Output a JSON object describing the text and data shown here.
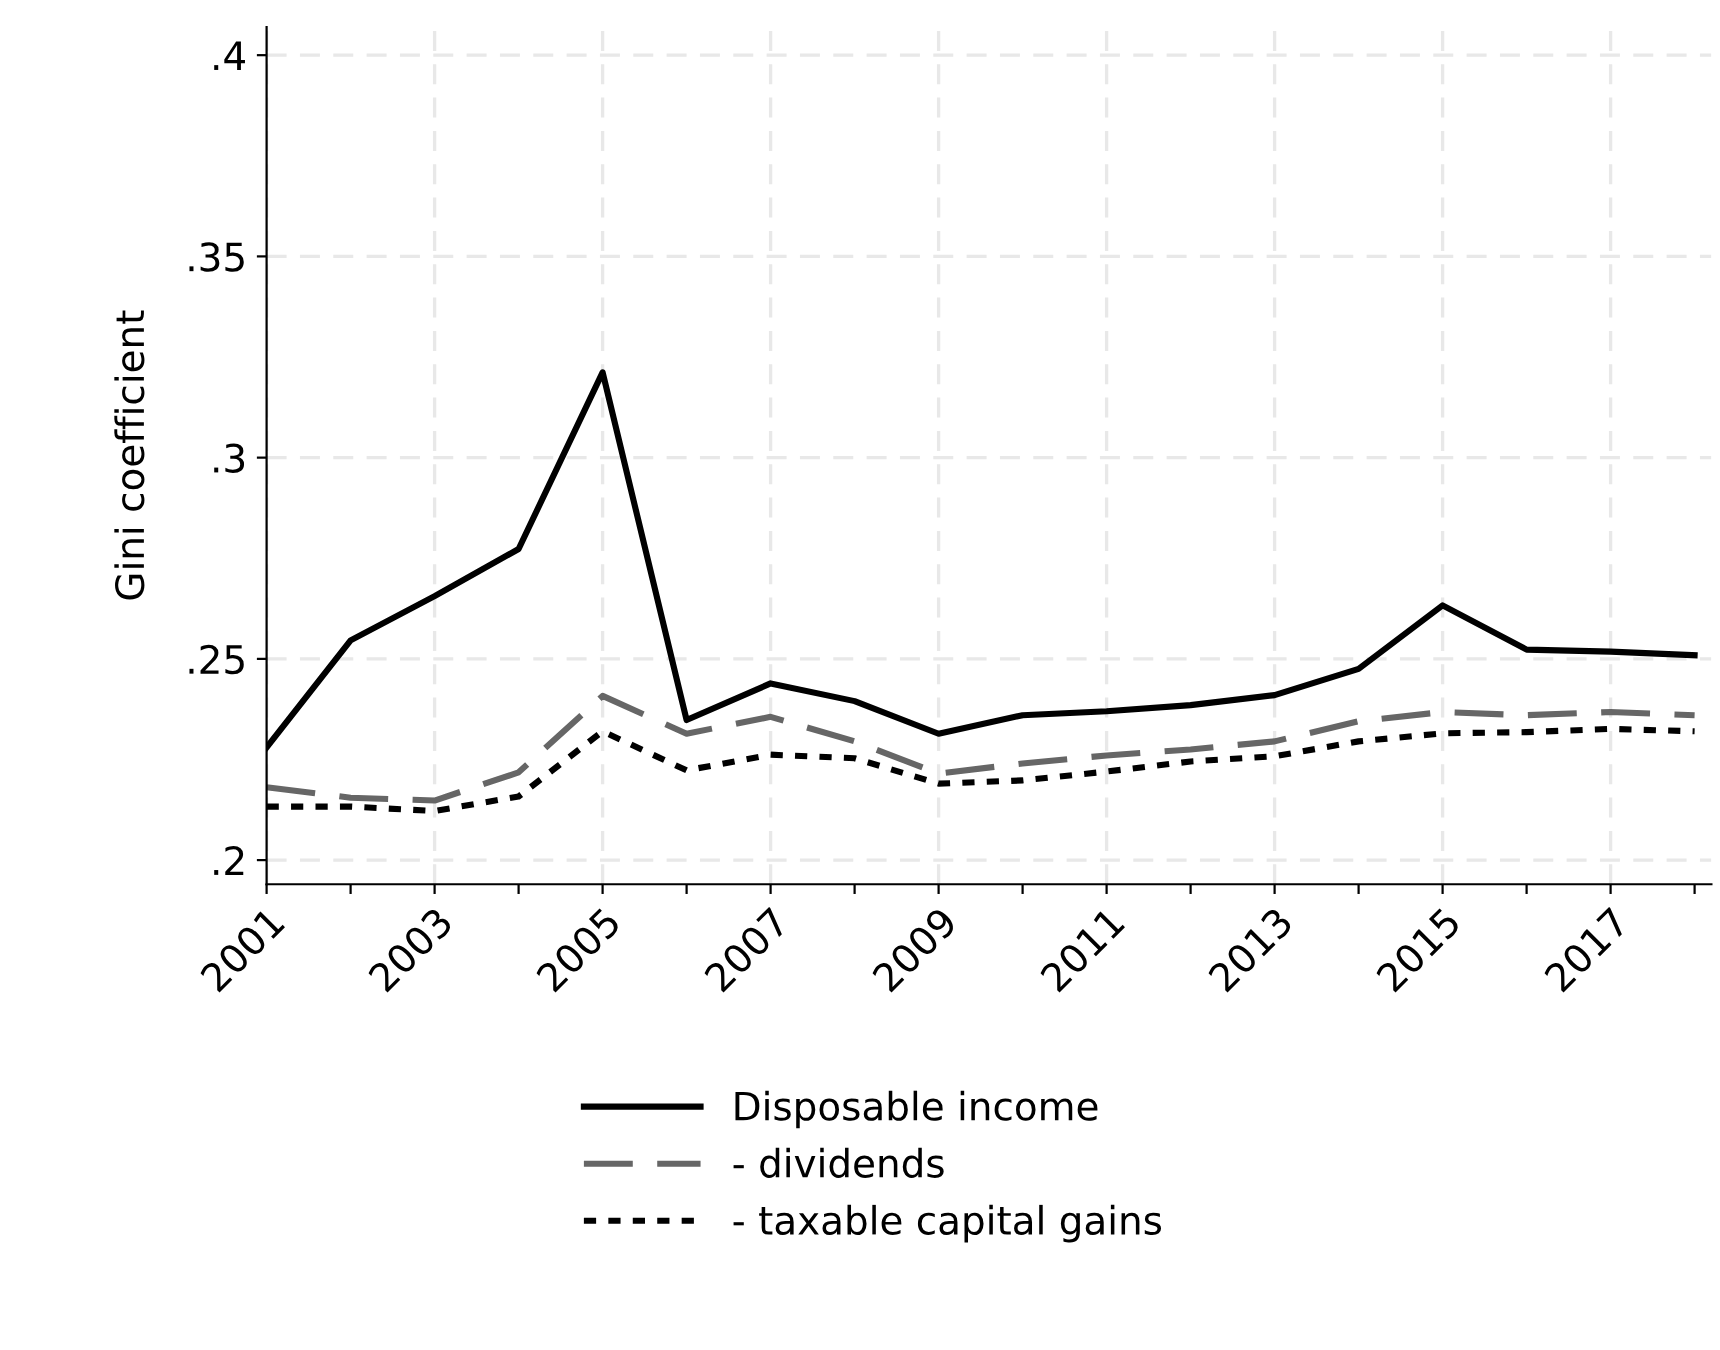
{
  "chart_data": {
    "type": "line",
    "ylabel": "Gini coefficient",
    "x": [
      2001,
      2002,
      2003,
      2004,
      2005,
      2006,
      2007,
      2008,
      2009,
      2010,
      2011,
      2012,
      2013,
      2014,
      2015,
      2016,
      2017,
      2018
    ],
    "series": [
      {
        "name": "Disposable income",
        "color": "#000000",
        "line_style": "solid",
        "values": [
          0.228,
          0.2546,
          0.2656,
          0.2773,
          0.3212,
          0.2348,
          0.2439,
          0.2395,
          0.2314,
          0.236,
          0.237,
          0.2385,
          0.241,
          0.2475,
          0.2633,
          0.2523,
          0.2518,
          0.2509
        ]
      },
      {
        "name": "- dividends",
        "color": "#666666",
        "line_style": "dashed",
        "values": [
          0.2181,
          0.2155,
          0.2148,
          0.2218,
          0.2408,
          0.2314,
          0.2356,
          0.2295,
          0.2215,
          0.224,
          0.226,
          0.2275,
          0.2295,
          0.2345,
          0.2368,
          0.236,
          0.2368,
          0.236
        ]
      },
      {
        "name": "- taxable capital gains",
        "color": "#000000",
        "line_style": "dotted",
        "values": [
          0.2133,
          0.2133,
          0.2122,
          0.2158,
          0.232,
          0.2223,
          0.2262,
          0.2253,
          0.219,
          0.2198,
          0.222,
          0.2245,
          0.2258,
          0.2295,
          0.2315,
          0.2318,
          0.2326,
          0.232
        ]
      }
    ],
    "xlim": [
      2001,
      2018.2
    ],
    "ylim": [
      0.194,
      0.407
    ],
    "xticks": [
      2001,
      {
        "value": 2002,
        "label": null
      },
      2003,
      {
        "value": 2004,
        "label": null
      },
      2005,
      {
        "value": 2006,
        "label": null
      },
      2007,
      {
        "value": 2008,
        "label": null
      },
      2009,
      {
        "value": 2010,
        "label": null
      },
      2011,
      {
        "value": 2012,
        "label": null
      },
      2013,
      {
        "value": 2014,
        "label": null
      },
      2015,
      {
        "value": 2016,
        "label": null
      },
      2017,
      {
        "value": 2018,
        "label": null
      }
    ],
    "yticks": [
      {
        "value": 0.2,
        "label": ".2"
      },
      {
        "value": 0.25,
        "label": ".25"
      },
      {
        "value": 0.3,
        "label": ".3"
      },
      {
        "value": 0.35,
        "label": ".35"
      },
      {
        "value": 0.4,
        "label": ".4"
      }
    ],
    "grid": true,
    "legend": "bottom"
  }
}
